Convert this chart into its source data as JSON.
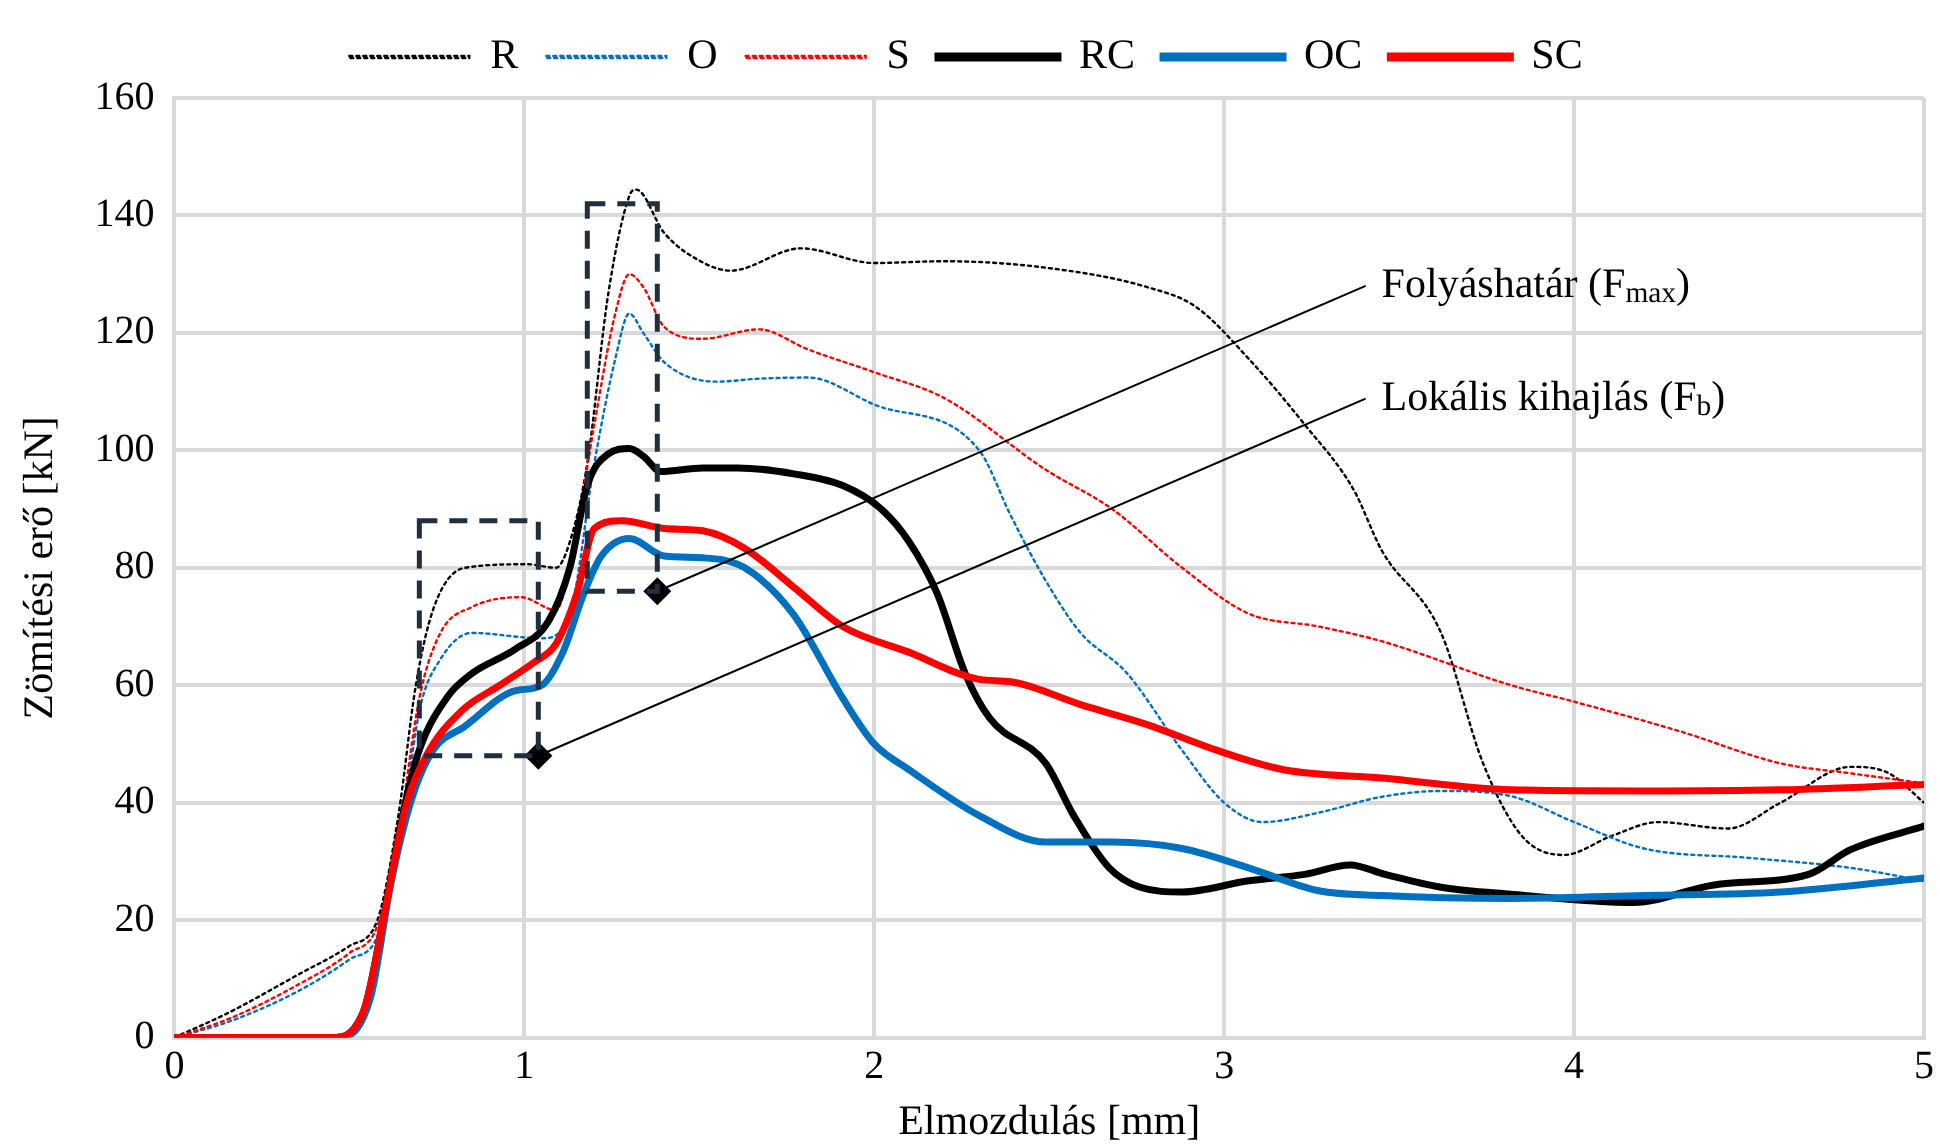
{
  "chart_data": {
    "type": "line",
    "xlabel": "Elmozdulás [mm]",
    "ylabel": "Zömítési erő [kN]",
    "xlim": [
      0,
      5
    ],
    "xticks": [
      0,
      1,
      2,
      3,
      4,
      5
    ],
    "ylim": [
      0,
      160
    ],
    "yticks": [
      0,
      20,
      40,
      60,
      80,
      100,
      120,
      140,
      160
    ],
    "grid": true,
    "legend": "top",
    "marker": "none",
    "annotations": [
      {
        "text": "Folyáshatár (F$_{max}$)",
        "x": 1.38,
        "y": 76
      },
      {
        "text": "Lokális kihajlás (F$_{b}$)",
        "x": 1.04,
        "y": 48
      }
    ],
    "series": [
      {
        "name": "R",
        "color": "#000000",
        "line_style": "dotted",
        "x": [
          0,
          0.16,
          0.35,
          0.5,
          0.58,
          0.64,
          0.69,
          0.74,
          0.83,
          1.01,
          1.09,
          1.13,
          1.18,
          1.24,
          1.3,
          1.32,
          1.4,
          1.51,
          1.59,
          1.79,
          2.0,
          2.2,
          2.49,
          2.78,
          2.92,
          3.07,
          3.23,
          3.37,
          3.45,
          3.62,
          3.74,
          3.85,
          3.97,
          4.11,
          4.24,
          4.44,
          4.59,
          4.79,
          4.9,
          5.0
        ],
        "values": [
          0,
          4.4,
          10.6,
          15.6,
          20,
          37.8,
          60,
          73,
          80,
          80.6,
          80,
          84.4,
          97.8,
          126.7,
          143.3,
          144.4,
          137,
          132,
          130.6,
          134.4,
          131.9,
          132.2,
          131.1,
          127.8,
          124.4,
          115.6,
          104.4,
          93.3,
          83,
          68.9,
          46.7,
          34.4,
          31.1,
          34.4,
          36.7,
          35.6,
          40,
          46.1,
          45,
          40
        ]
      },
      {
        "name": "O",
        "color": "#0070c0",
        "line_style": "dotted",
        "x": [
          0,
          0.16,
          0.35,
          0.5,
          0.58,
          0.64,
          0.7,
          0.76,
          0.85,
          1.05,
          1.13,
          1.2,
          1.26,
          1.3,
          1.34,
          1.4,
          1.55,
          1.67,
          1.81,
          2.0,
          2.3,
          2.39,
          2.49,
          2.59,
          2.72,
          2.88,
          3.0,
          3.11,
          3.27,
          3.45,
          3.62,
          3.82,
          4.0,
          4.2,
          4.5,
          4.79,
          5.0
        ],
        "values": [
          0,
          2.8,
          7.8,
          13.3,
          17.2,
          31.1,
          55.6,
          64.4,
          68.9,
          68,
          72.2,
          97.8,
          115.6,
          123.3,
          120,
          115,
          111.7,
          112.2,
          112.4,
          107.8,
          100,
          88.9,
          77.8,
          68.9,
          62.2,
          48.9,
          40,
          36.7,
          38.3,
          41,
          42,
          41.1,
          36.7,
          32.2,
          30.6,
          28.9,
          26.7
        ]
      },
      {
        "name": "S",
        "color": "#ff0000",
        "line_style": "dotted",
        "x": [
          0,
          0.16,
          0.35,
          0.5,
          0.58,
          0.64,
          0.7,
          0.76,
          0.85,
          0.99,
          1.09,
          1.15,
          1.2,
          1.26,
          1.3,
          1.34,
          1.4,
          1.51,
          1.67,
          1.81,
          2.0,
          2.2,
          2.49,
          2.68,
          2.88,
          3.07,
          3.27,
          3.45,
          3.82,
          4.0,
          4.3,
          4.59,
          4.79,
          5.0
        ],
        "values": [
          0,
          3.3,
          8.9,
          14.4,
          19,
          34.4,
          57.8,
          68.9,
          73.3,
          75,
          72.8,
          86.7,
          104.4,
          123.3,
          130,
          127.8,
          121,
          119,
          120.6,
          117.2,
          113.3,
          108.9,
          96.7,
          90,
          80,
          72.2,
          70,
          67.5,
          60,
          57.2,
          52.2,
          46.7,
          45,
          43.3
        ]
      },
      {
        "name": "RC",
        "color": "#000000",
        "line_style": "solid",
        "x": [
          0,
          0.45,
          0.54,
          0.6,
          0.66,
          0.7,
          0.78,
          0.85,
          0.97,
          1.07,
          1.13,
          1.18,
          1.24,
          1.3,
          1.34,
          1.39,
          1.51,
          1.61,
          1.77,
          1.91,
          2.02,
          2.1,
          2.18,
          2.26,
          2.33,
          2.49,
          2.57,
          2.67,
          2.76,
          2.88,
          3.07,
          3.23,
          3.36,
          3.46,
          3.62,
          3.82,
          4.17,
          4.4,
          4.67,
          4.79,
          5.0
        ],
        "values": [
          0,
          0,
          4.4,
          21,
          40,
          49,
          58,
          62,
          66,
          71,
          80,
          94,
          99.4,
          100.3,
          99,
          96.4,
          97,
          97,
          96,
          94,
          90,
          84.4,
          75.6,
          62,
          54.4,
          46.7,
          37.8,
          29,
          25.6,
          24.8,
          26.7,
          27.8,
          29.4,
          27.8,
          25.6,
          24.4,
          23,
          26,
          27.8,
          32,
          36
        ]
      },
      {
        "name": "OC",
        "color": "#0070c0",
        "line_style": "solid",
        "x": [
          0,
          0.47,
          0.56,
          0.62,
          0.68,
          0.74,
          0.83,
          0.97,
          1.05,
          1.11,
          1.17,
          1.22,
          1.3,
          1.4,
          1.51,
          1.63,
          1.77,
          1.91,
          2.0,
          2.1,
          2.3,
          2.49,
          2.68,
          2.88,
          3.07,
          3.27,
          3.45,
          3.82,
          4.2,
          4.59,
          5.0
        ],
        "values": [
          0,
          0,
          6.7,
          26.7,
          41,
          49,
          53,
          59,
          60,
          65.6,
          75.6,
          82,
          85,
          82,
          81.7,
          80,
          72,
          57.8,
          50,
          45.6,
          37.8,
          33.3,
          33.3,
          32.2,
          28.9,
          25,
          24.2,
          23.7,
          24.2,
          24.8,
          27.2
        ]
      },
      {
        "name": "SC",
        "color": "#ff0000",
        "line_style": "solid",
        "x": [
          0,
          0.45,
          0.54,
          0.6,
          0.66,
          0.72,
          0.82,
          0.93,
          1.03,
          1.09,
          1.15,
          1.2,
          1.28,
          1.4,
          1.51,
          1.63,
          1.77,
          1.91,
          2.1,
          2.3,
          2.39,
          2.59,
          2.78,
          2.98,
          3.17,
          3.45,
          3.82,
          4.2,
          4.59,
          5.0
        ],
        "values": [
          0,
          0,
          4.4,
          21,
          39,
          48,
          55.6,
          60,
          64,
          67,
          75.6,
          86.7,
          88,
          86.7,
          86.3,
          83.3,
          76.7,
          70,
          65.6,
          61,
          60.6,
          56.7,
          53.3,
          48.9,
          45.6,
          44.2,
          42.2,
          42,
          42.2,
          43.1
        ]
      }
    ]
  }
}
